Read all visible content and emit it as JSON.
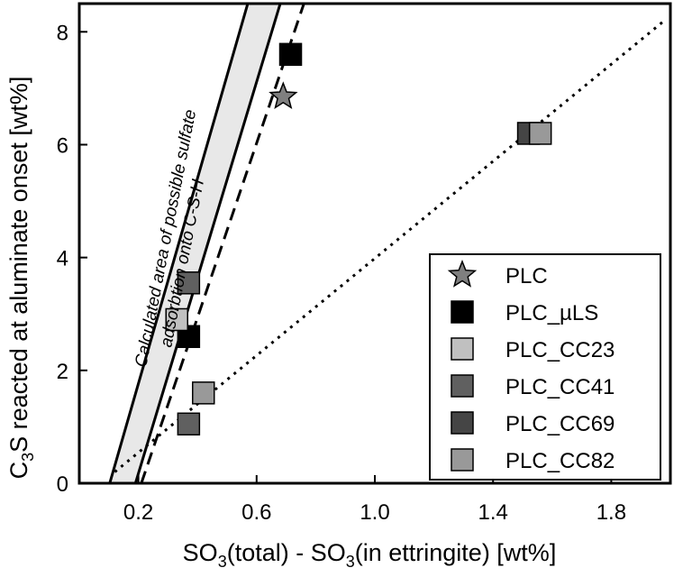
{
  "chart_data": {
    "type": "scatter",
    "xlabel_parts": [
      "SO",
      "3",
      "(total) - SO",
      "3",
      "(in ettringite) [wt%]"
    ],
    "ylabel_parts": [
      "C",
      "3",
      "S reacted at aluminate onset [wt%]"
    ],
    "xlim": [
      0.0,
      2.0
    ],
    "ylim": [
      0,
      8.5
    ],
    "xticks": [
      0.2,
      0.6,
      1.0,
      1.4,
      1.8
    ],
    "xtick_labels": [
      "0.2",
      "0.6",
      "1.0",
      "1.4",
      "1.8"
    ],
    "yticks": [
      0,
      2,
      4,
      6,
      8
    ],
    "ytick_labels": [
      "0",
      "2",
      "4",
      "6",
      "8"
    ],
    "grid": false,
    "legend_position": "bottom-right",
    "annotation_lines": [
      "Calculated area of possible sulfate",
      "adsorbtion onto C-S-H"
    ],
    "band": {
      "left_edge": [
        [
          0.103,
          0
        ],
        [
          0.57,
          8.5
        ]
      ],
      "right_edge": [
        [
          0.19,
          0
        ],
        [
          0.68,
          8.5
        ]
      ],
      "fill": "#e8e8e8"
    },
    "lines": [
      {
        "style": "dashed",
        "points": [
          [
            0.21,
            0
          ],
          [
            0.76,
            8.5
          ]
        ]
      },
      {
        "style": "dotted",
        "points": [
          [
            0.12,
            0.2
          ],
          [
            1.98,
            8.2
          ]
        ]
      }
    ],
    "series": [
      {
        "name": "PLC",
        "marker": "star",
        "color": "#7f7f7f",
        "points": [
          [
            0.69,
            6.85
          ]
        ]
      },
      {
        "name": "PLC_µLS",
        "marker": "square",
        "color": "#000000",
        "points": [
          [
            0.715,
            7.6
          ],
          [
            0.37,
            2.6
          ]
        ]
      },
      {
        "name": "PLC_CC23",
        "marker": "square",
        "color": "#c0c0c0",
        "points": [
          [
            0.33,
            2.9
          ]
        ]
      },
      {
        "name": "PLC_CC41",
        "marker": "square",
        "color": "#606060",
        "points": [
          [
            0.37,
            3.55
          ],
          [
            0.37,
            1.05
          ]
        ]
      },
      {
        "name": "PLC_CC69",
        "marker": "square",
        "color": "#454545",
        "points": [
          [
            1.52,
            6.2
          ]
        ]
      },
      {
        "name": "PLC_CC82",
        "marker": "square",
        "color": "#999999",
        "points": [
          [
            1.56,
            6.2
          ],
          [
            0.42,
            1.6
          ]
        ]
      }
    ]
  }
}
